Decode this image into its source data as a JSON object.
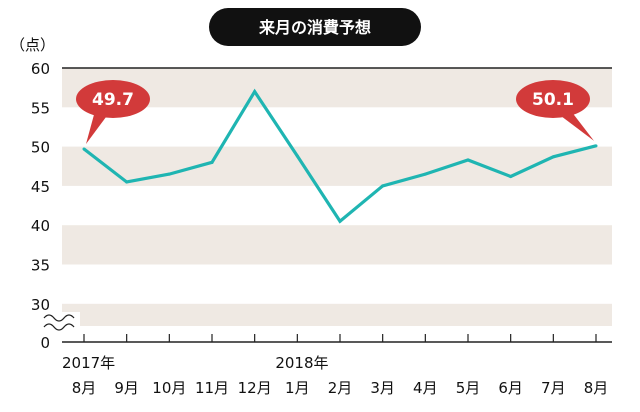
{
  "chart_data": {
    "type": "line",
    "title": "来月の消費予想",
    "unit_label": "（点）",
    "categories": [
      "8月",
      "9月",
      "10月",
      "11月",
      "12月",
      "1月",
      "2月",
      "3月",
      "4月",
      "5月",
      "6月",
      "7月",
      "8月"
    ],
    "year_labels": [
      {
        "index": 0,
        "text": "2017年"
      },
      {
        "index": 5,
        "text": "2018年"
      }
    ],
    "series": [
      {
        "values": [
          49.7,
          45.5,
          46.5,
          48.0,
          57.0,
          48.8,
          40.5,
          45.0,
          46.5,
          48.3,
          46.2,
          48.7,
          50.1
        ]
      }
    ],
    "y_ticks": [
      0,
      30,
      35,
      40,
      45,
      50,
      55,
      60
    ],
    "y_display_range": [
      30,
      60
    ],
    "axis_break": true,
    "callouts": [
      {
        "index": 0,
        "text": "49.7"
      },
      {
        "index": 12,
        "text": "50.1"
      }
    ],
    "colors": {
      "line": "#1fb5b2",
      "band": "#efe9e3",
      "title_bg": "#111111",
      "callout": "#d23a3a"
    }
  }
}
